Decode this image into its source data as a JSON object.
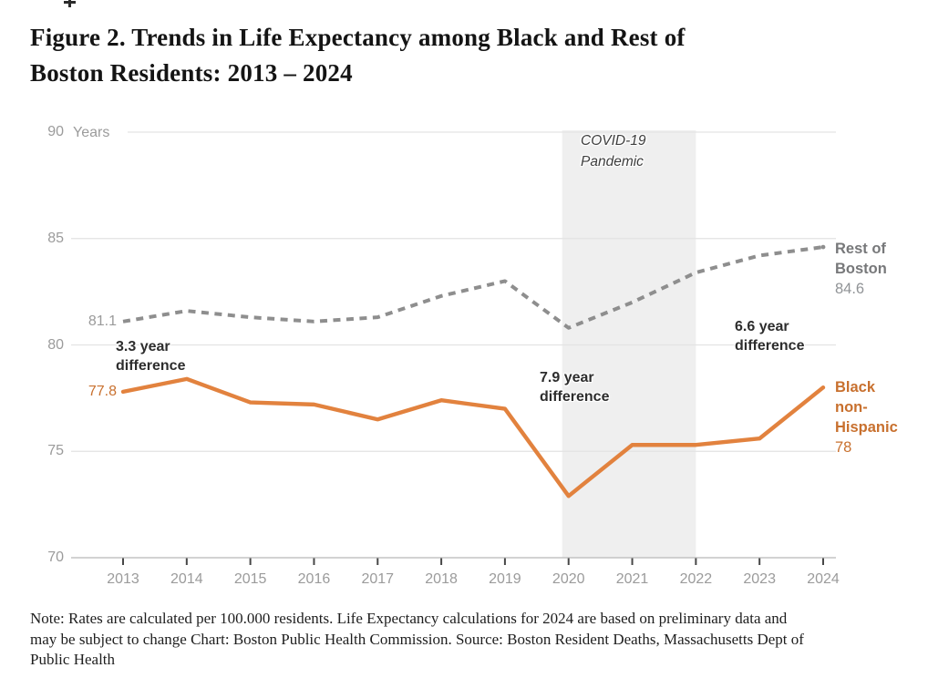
{
  "figure": {
    "title": "Figure 2. Trends in Life Expectancy among Black and Rest of\nBoston Residents: 2013 – 2024"
  },
  "note": {
    "text": "Note: Rates are calculated per 100.000 residents. Life Expectancy calculations for 2024 are based on preliminary data and\nmay be subject to change Chart: Boston Public Health Commission. Source: Boston Resident Deaths, Massachusetts Dept of\nPublic Health"
  },
  "chart_data": {
    "type": "line",
    "title": "Trends in Life Expectancy among Black and Rest of Boston Residents: 2013 – 2024",
    "x": [
      2013,
      2014,
      2015,
      2016,
      2017,
      2018,
      2019,
      2020,
      2021,
      2022,
      2023,
      2024
    ],
    "series": [
      {
        "name": "Rest of Boston",
        "style": "dashed",
        "color": "#8E8E8E",
        "values": [
          81.1,
          81.6,
          81.3,
          81.1,
          81.3,
          82.3,
          83.0,
          80.8,
          82.0,
          83.4,
          84.2,
          84.6
        ]
      },
      {
        "name": "Black non-Hispanic",
        "style": "solid",
        "color": "#E2823E",
        "values": [
          77.8,
          78.4,
          77.3,
          77.2,
          76.5,
          77.4,
          77.0,
          72.9,
          75.3,
          75.3,
          75.6,
          78.0
        ]
      }
    ],
    "ylim": [
      70,
      90
    ],
    "yticks": [
      70,
      75,
      80,
      85,
      90
    ],
    "y_unit": "Years",
    "grid": true,
    "band": {
      "label": "COVID-19\nPandemic",
      "from": 2020,
      "to": 2022,
      "color": "#EFEFEF"
    },
    "annotations": [
      {
        "year": 2013,
        "text": "3.3 year\ndifference"
      },
      {
        "year": 2020,
        "text": "7.9 year\ndifference"
      },
      {
        "year": 2024,
        "text": "6.6 year\ndifference"
      }
    ],
    "series_labels": {
      "rest": {
        "name_wrapped": "Rest of\nBoston",
        "start_value": "81.1",
        "end_value": "84.6"
      },
      "black": {
        "name_wrapped": "Black\nnon-\nHispanic",
        "start_value": "77.8",
        "end_value": "78"
      }
    }
  }
}
